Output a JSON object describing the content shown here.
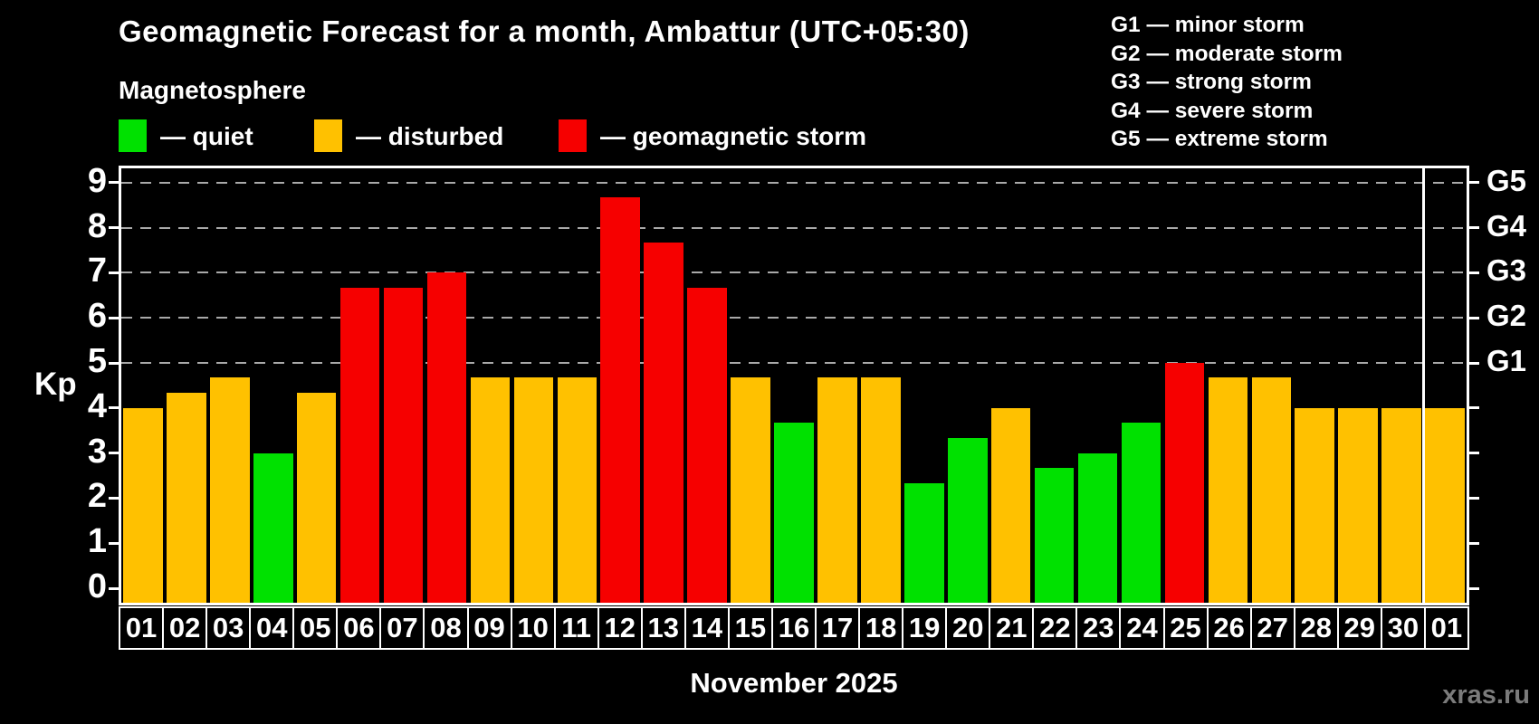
{
  "header": {
    "title": "Geomagnetic Forecast for a month, Ambattur (UTC+05:30)",
    "subtitle": "Magnetosphere"
  },
  "legend": {
    "items": [
      {
        "label": "— quiet",
        "status": "quiet"
      },
      {
        "label": "— disturbed",
        "status": "disturbed"
      },
      {
        "label": "— geomagnetic storm",
        "status": "storm"
      }
    ]
  },
  "storm_scale_legend": {
    "items": [
      "G1 — minor storm",
      "G2 — moderate storm",
      "G3 — strong storm",
      "G4 — severe storm",
      "G5 — extreme storm"
    ]
  },
  "chart_data": {
    "type": "bar",
    "title": "Geomagnetic Forecast for a month, Ambattur (UTC+05:30)",
    "subtitle": "Magnetosphere",
    "ylabel": "Kp",
    "xlabel": "November 2025",
    "ylim": [
      -0.45,
      9.4
    ],
    "yticks": [
      0,
      1,
      2,
      3,
      4,
      5,
      6,
      7,
      8,
      9
    ],
    "grid": "dashed horizontal lines only at G-storm levels (Kp 5-9)",
    "legend_position": "top-left",
    "right_axis_g_levels": [
      {
        "label": "G1",
        "kp": 5
      },
      {
        "label": "G2",
        "kp": 6
      },
      {
        "label": "G3",
        "kp": 7
      },
      {
        "label": "G4",
        "kp": 8
      },
      {
        "label": "G5",
        "kp": 9
      }
    ],
    "categories": [
      "01",
      "02",
      "03",
      "04",
      "05",
      "06",
      "07",
      "08",
      "09",
      "10",
      "11",
      "12",
      "13",
      "14",
      "15",
      "16",
      "17",
      "18",
      "19",
      "20",
      "21",
      "22",
      "23",
      "24",
      "25",
      "26",
      "27",
      "28",
      "29",
      "30",
      "01"
    ],
    "month_boundary_after_index": 29,
    "series": [
      {
        "name": "Kp forecast",
        "values": [
          4.0,
          4.33,
          4.67,
          3.0,
          4.33,
          6.67,
          6.67,
          7.0,
          4.67,
          4.67,
          4.67,
          8.67,
          7.67,
          6.67,
          4.67,
          3.67,
          4.67,
          4.67,
          2.33,
          3.33,
          4.0,
          2.67,
          3.0,
          3.67,
          5.0,
          4.67,
          4.67,
          4.0,
          4.0,
          4.0,
          4.0
        ],
        "statuses": [
          "disturbed",
          "disturbed",
          "disturbed",
          "quiet",
          "disturbed",
          "storm",
          "storm",
          "storm",
          "disturbed",
          "disturbed",
          "disturbed",
          "storm",
          "storm",
          "storm",
          "disturbed",
          "quiet",
          "disturbed",
          "disturbed",
          "quiet",
          "quiet",
          "disturbed",
          "quiet",
          "quiet",
          "quiet",
          "storm",
          "disturbed",
          "disturbed",
          "disturbed",
          "disturbed",
          "disturbed",
          "disturbed"
        ]
      }
    ]
  },
  "footer": {
    "month_label": "November 2025",
    "watermark": "xras.ru"
  },
  "colors": {
    "background": "#000000",
    "quiet": "#00e100",
    "disturbed": "#ffc100",
    "storm": "#f60000",
    "axis": "#ffffff",
    "grid": "#a9a9a9",
    "watermark": "#7b7b7b"
  }
}
